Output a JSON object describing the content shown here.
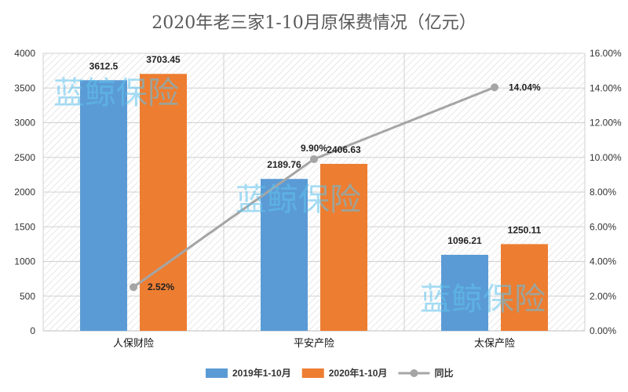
{
  "chart_data": {
    "type": "bar",
    "title": "2020年老三家1-10月原保费情况（亿元）",
    "categories": [
      "人保财险",
      "平安产险",
      "太保产险"
    ],
    "series": [
      {
        "name": "2019年1-10月",
        "type": "bar",
        "axis": "left",
        "color": "#5b9bd5",
        "values": [
          3612.5,
          2189.76,
          1096.21
        ]
      },
      {
        "name": "2020年1-10月",
        "type": "bar",
        "axis": "left",
        "color": "#ed7d31",
        "values": [
          3703.45,
          2406.63,
          1250.11
        ]
      },
      {
        "name": "同比",
        "type": "line",
        "axis": "right",
        "color": "#a5a5a5",
        "values": [
          2.52,
          9.9,
          14.04
        ]
      }
    ],
    "data_labels": {
      "2019年1-10月": [
        "3612.5",
        "2189.76",
        "1096.21"
      ],
      "2020年1-10月": [
        "3703.45",
        "2406.63",
        "1250.11"
      ],
      "同比": [
        "2.52%",
        "9.90%",
        "14.04%"
      ]
    },
    "y_left": {
      "min": 0,
      "max": 4000,
      "step": 500,
      "ticks": [
        "0",
        "500",
        "1000",
        "1500",
        "2000",
        "2500",
        "3000",
        "3500",
        "4000"
      ]
    },
    "y_right": {
      "min": 0,
      "max": 16,
      "step": 2,
      "ticks": [
        "0.00%",
        "2.00%",
        "4.00%",
        "6.00%",
        "8.00%",
        "10.00%",
        "12.00%",
        "14.00%",
        "16.00%"
      ]
    },
    "grid": true,
    "legend": "bottom"
  },
  "watermark": "蓝鲸保险"
}
